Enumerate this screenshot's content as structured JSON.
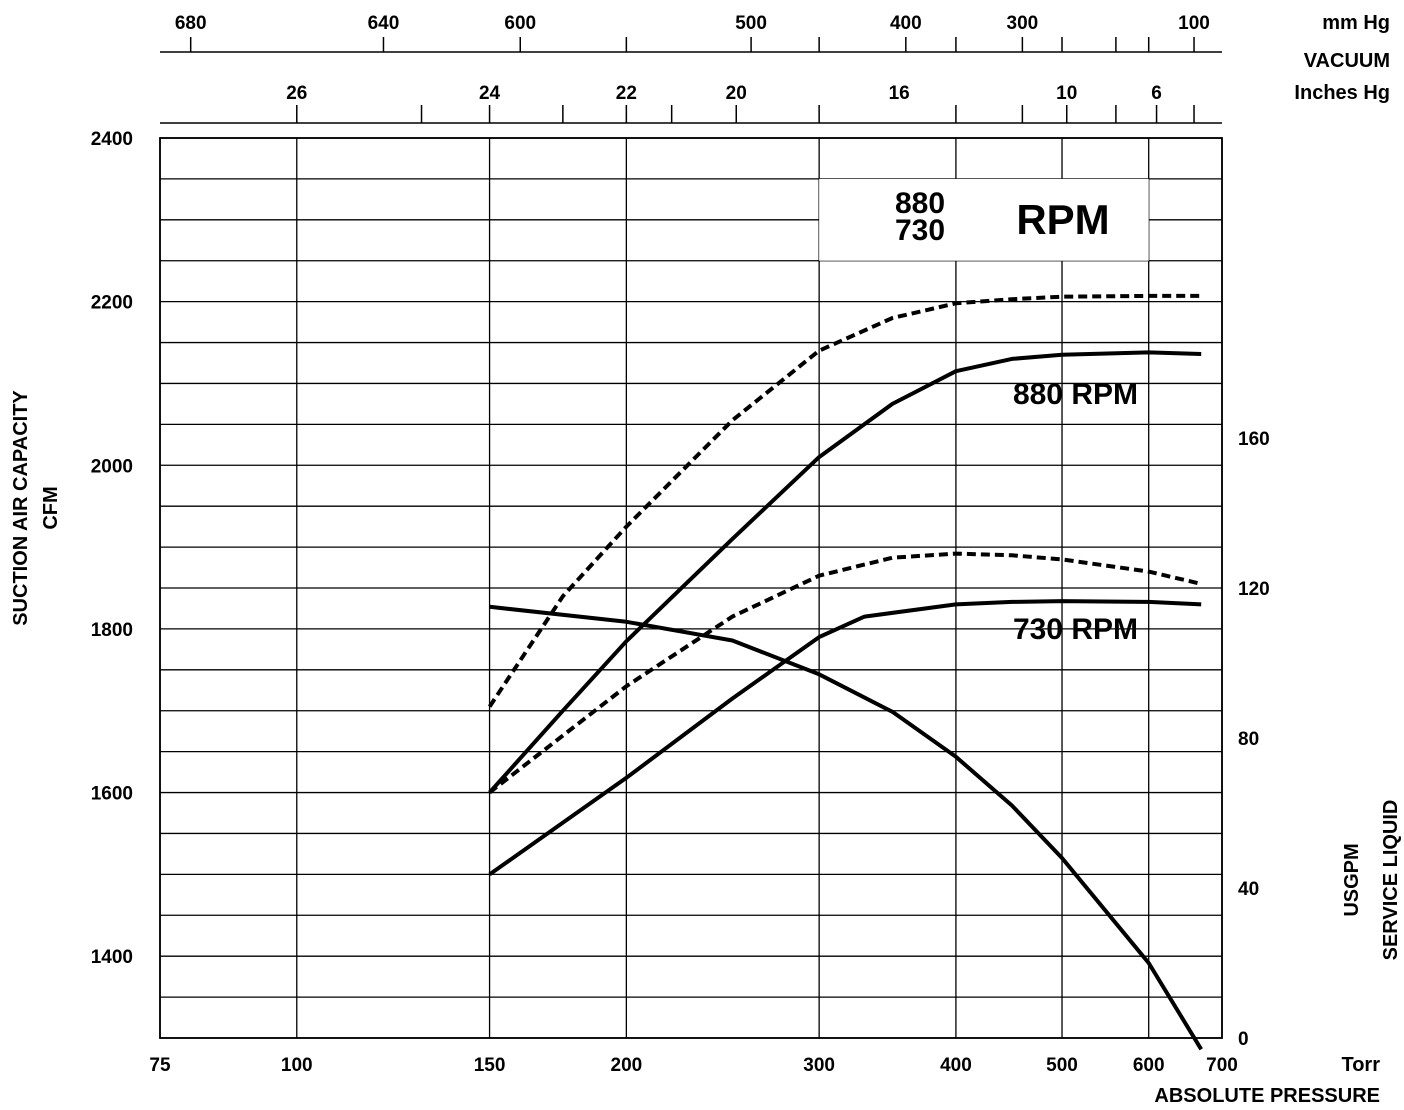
{
  "chart_data": {
    "type": "line",
    "x_scale": "log",
    "xlim": [
      75,
      700
    ],
    "ylim": [
      1300,
      2400
    ],
    "y2lim": [
      0,
      240
    ],
    "grid": true,
    "x_ticks": [
      75,
      100,
      150,
      200,
      300,
      400,
      500,
      600,
      700
    ],
    "x_tick_labels": [
      "75",
      "100",
      "150",
      "200",
      "300",
      "400",
      "500",
      "600",
      "700"
    ],
    "x_unit": "Torr",
    "xlabel": "ABSOLUTE PRESSURE",
    "y_ticks": [
      1400,
      1600,
      1800,
      2000,
      2200,
      2400
    ],
    "ylabel": [
      "SUCTION AIR CAPACITY",
      "CFM"
    ],
    "y2_ticks": [
      0,
      40,
      80,
      120,
      160
    ],
    "y2label": [
      "SERVICE LIQUID",
      "USGPM"
    ],
    "top_axis_mmhg": {
      "unit": "mm Hg",
      "title": "VACUUM",
      "ticks_torr": [
        80,
        120,
        160,
        200,
        260,
        300,
        360,
        400,
        460,
        500,
        560,
        600,
        660
      ],
      "labels": [
        {
          "at": 80,
          "text": "680"
        },
        {
          "at": 120,
          "text": "640"
        },
        {
          "at": 160,
          "text": "600"
        },
        {
          "at": 260,
          "text": "500"
        },
        {
          "at": 360,
          "text": "400"
        },
        {
          "at": 460,
          "text": "300"
        },
        {
          "at": 660,
          "text": "100"
        }
      ]
    },
    "top_axis_inhg": {
      "unit": "Inches Hg",
      "ticks_torr": [
        100,
        130,
        150,
        175,
        200,
        220,
        252,
        300,
        400,
        460,
        505,
        560,
        610,
        660
      ],
      "labels": [
        {
          "at": 100,
          "text": "26"
        },
        {
          "at": 150,
          "text": "24"
        },
        {
          "at": 200,
          "text": "22"
        },
        {
          "at": 252,
          "text": "20"
        },
        {
          "at": 355,
          "text": "16"
        },
        {
          "at": 505,
          "text": "10"
        },
        {
          "at": 610,
          "text": "6"
        }
      ]
    },
    "legend": {
      "values": [
        "880",
        "730"
      ],
      "unit": "RPM",
      "placement": "top-right"
    },
    "series": [
      {
        "label": "880 RPM",
        "axis": "left",
        "style": "dashed",
        "points": [
          [
            150,
            1705
          ],
          [
            175,
            1840
          ],
          [
            200,
            1925
          ],
          [
            250,
            2055
          ],
          [
            300,
            2140
          ],
          [
            350,
            2180
          ],
          [
            400,
            2198
          ],
          [
            450,
            2203
          ],
          [
            500,
            2206
          ],
          [
            600,
            2207
          ],
          [
            670,
            2207
          ]
        ]
      },
      {
        "label": "880 RPM",
        "axis": "left",
        "style": "solid",
        "points": [
          [
            150,
            1600
          ],
          [
            175,
            1700
          ],
          [
            200,
            1785
          ],
          [
            250,
            1910
          ],
          [
            300,
            2010
          ],
          [
            350,
            2075
          ],
          [
            400,
            2115
          ],
          [
            450,
            2130
          ],
          [
            500,
            2135
          ],
          [
            600,
            2138
          ],
          [
            670,
            2136
          ]
        ]
      },
      {
        "label": "730 RPM",
        "axis": "left",
        "style": "dashed",
        "points": [
          [
            150,
            1600
          ],
          [
            200,
            1730
          ],
          [
            250,
            1815
          ],
          [
            300,
            1865
          ],
          [
            350,
            1887
          ],
          [
            400,
            1892
          ],
          [
            450,
            1890
          ],
          [
            500,
            1885
          ],
          [
            600,
            1870
          ],
          [
            670,
            1855
          ]
        ]
      },
      {
        "label": "730 RPM",
        "axis": "left",
        "style": "solid",
        "points": [
          [
            150,
            1500
          ],
          [
            200,
            1618
          ],
          [
            250,
            1715
          ],
          [
            300,
            1790
          ],
          [
            330,
            1815
          ],
          [
            400,
            1830
          ],
          [
            450,
            1833
          ],
          [
            500,
            1834
          ],
          [
            600,
            1833
          ],
          [
            670,
            1830
          ]
        ]
      },
      {
        "label": "",
        "axis": "right",
        "style": "solid",
        "points": [
          [
            150,
            115
          ],
          [
            200,
            111
          ],
          [
            250,
            106
          ],
          [
            300,
            97
          ],
          [
            350,
            87
          ],
          [
            400,
            75
          ],
          [
            450,
            62
          ],
          [
            500,
            48
          ],
          [
            600,
            20
          ],
          [
            670,
            -3
          ]
        ]
      }
    ]
  }
}
